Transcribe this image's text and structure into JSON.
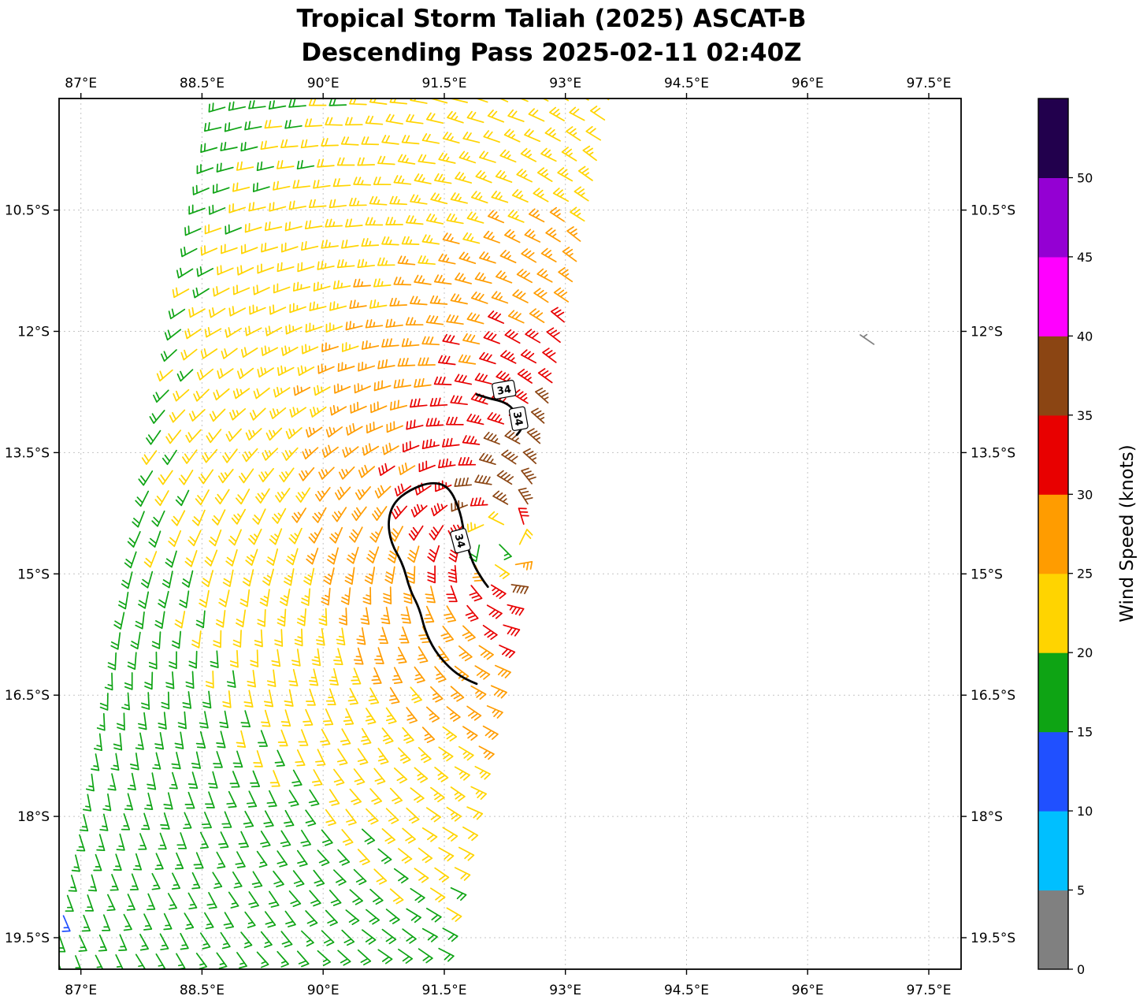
{
  "title": {
    "line1": "Tropical Storm Taliah (2025) ASCAT-B",
    "line2": "Descending Pass 2025-02-11 02:40Z"
  },
  "chart_data": {
    "type": "wind_barb_map",
    "title": "Tropical Storm Taliah (2025) ASCAT-B",
    "subtitle": "Descending Pass 2025-02-11 02:40Z",
    "grid": true,
    "x_axis": {
      "unit": "°E",
      "tick_values": [
        87,
        88.5,
        90,
        91.5,
        93,
        94.5,
        96,
        97.5
      ],
      "tick_labels": [
        "87°E",
        "88.5°E",
        "90°E",
        "91.5°E",
        "93°E",
        "94.5°E",
        "96°E",
        "97.5°E"
      ],
      "range": [
        86.73,
        97.9
      ]
    },
    "y_axis": {
      "unit": "°S",
      "tick_values": [
        10.5,
        12,
        13.5,
        15,
        16.5,
        18,
        19.5
      ],
      "tick_labels": [
        "10.5°S",
        "12°S",
        "13.5°S",
        "15°S",
        "16.5°S",
        "18°S",
        "19.5°S"
      ],
      "range": [
        9.12,
        19.89
      ]
    },
    "colorbar": {
      "label": "Wind Speed (knots)",
      "tick_values": [
        0,
        5,
        10,
        15,
        20,
        25,
        30,
        35,
        40,
        45,
        50
      ],
      "range": [
        0,
        55
      ],
      "segments": [
        {
          "from": 0,
          "to": 5,
          "color": "#808080"
        },
        {
          "from": 5,
          "to": 10,
          "color": "#00bfff"
        },
        {
          "from": 10,
          "to": 15,
          "color": "#2050ff"
        },
        {
          "from": 15,
          "to": 20,
          "color": "#0ea414"
        },
        {
          "from": 20,
          "to": 25,
          "color": "#ffd400"
        },
        {
          "from": 25,
          "to": 30,
          "color": "#ff9c00"
        },
        {
          "from": 30,
          "to": 35,
          "color": "#e80000"
        },
        {
          "from": 35,
          "to": 40,
          "color": "#8b4513"
        },
        {
          "from": 40,
          "to": 45,
          "color": "#ff00ff"
        },
        {
          "from": 45,
          "to": 50,
          "color": "#9400d3"
        },
        {
          "from": 50,
          "to": 55,
          "color": "#22004d"
        }
      ]
    },
    "storm": {
      "name": "Taliah",
      "center_lon_e": 92.2,
      "center_lat_s": 14.6,
      "vmax_kt": 39,
      "cap_kt": 39.4,
      "rmax_deg": 0.55,
      "eye_kt": 19,
      "eye_radius_deg": 0.22,
      "inner_decay_exp": 0.2,
      "outer_break_deg": 2.2,
      "outer_decay_exp": 0.42,
      "asymmetry_frac": 0.15,
      "asymmetry_dir_deg": 30,
      "inflow_deg": 20,
      "rotation": "clockwise"
    },
    "swath": {
      "lat_top_s": 9.18,
      "lat_bottom_s": 19.88,
      "lat_ref": 9.1,
      "center_lon_at_ref_e": 91.25,
      "center_lon_slope": -0.2,
      "half_width_deg": 2.45,
      "barb_spacing_deg": 0.25,
      "row_tilt": -0.02
    },
    "contour_34kt": {
      "level_kt": 34,
      "paths": [
        [
          [
            91.9,
            12.78
          ],
          [
            92.05,
            12.83
          ],
          [
            92.2,
            12.86
          ],
          [
            92.33,
            12.93
          ],
          [
            92.36,
            13.0
          ]
        ],
        [
          [
            92.4,
            13.04
          ],
          [
            92.47,
            13.13
          ],
          [
            92.45,
            13.22
          ],
          [
            92.4,
            13.28
          ]
        ],
        [
          [
            91.9,
            16.36
          ],
          [
            91.75,
            16.3
          ],
          [
            91.56,
            16.16
          ],
          [
            91.38,
            15.95
          ],
          [
            91.26,
            15.7
          ],
          [
            91.19,
            15.42
          ],
          [
            91.07,
            15.19
          ],
          [
            90.99,
            14.88
          ],
          [
            90.84,
            14.62
          ],
          [
            90.8,
            14.35
          ],
          [
            90.87,
            14.12
          ],
          [
            91.07,
            13.96
          ],
          [
            91.34,
            13.86
          ],
          [
            91.56,
            13.92
          ],
          [
            91.7,
            14.23
          ],
          [
            91.75,
            14.53
          ],
          [
            91.85,
            14.87
          ],
          [
            91.98,
            15.08
          ],
          [
            92.04,
            15.16
          ]
        ]
      ],
      "labels": [
        {
          "text": "34",
          "lon": 92.24,
          "lat": 12.72,
          "rot": -10
        },
        {
          "text": "34",
          "lon": 92.42,
          "lat": 13.08,
          "rot": 80
        },
        {
          "text": "34",
          "lon": 91.7,
          "lat": 14.59,
          "rot": 75
        }
      ]
    },
    "stray_barbs": [
      {
        "lon": 96.82,
        "lat": 12.16,
        "speed_kt": 3,
        "flow_dir_rad": 0.6
      }
    ]
  }
}
